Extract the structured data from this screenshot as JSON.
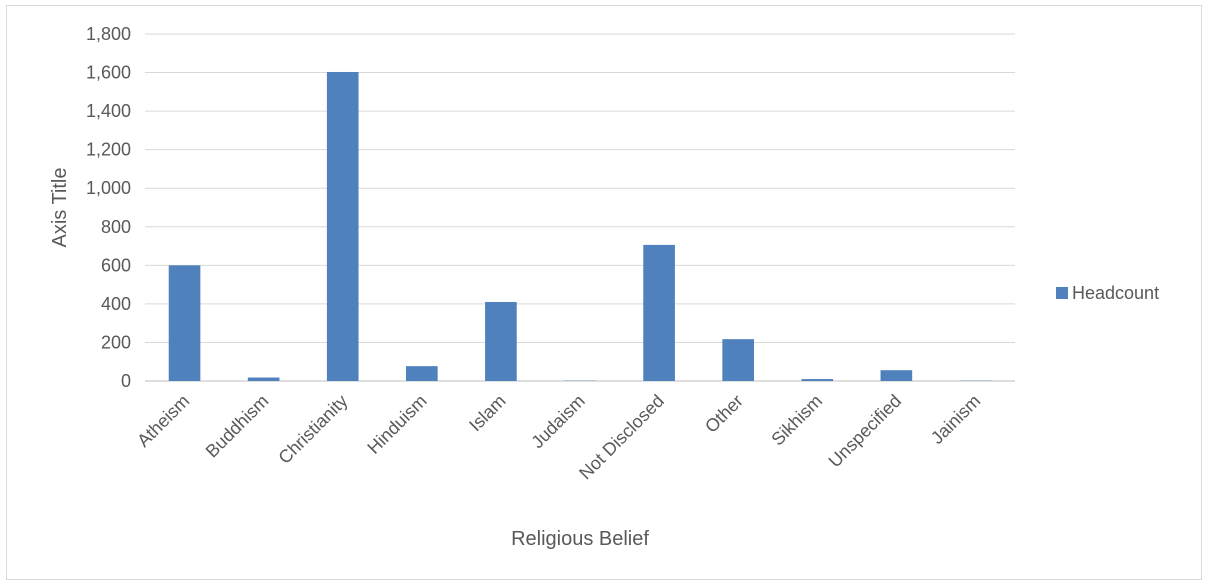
{
  "chart_data": {
    "type": "bar",
    "categories": [
      "Atheism",
      "Buddhism",
      "Christianity",
      "Hinduism",
      "Islam",
      "Judaism",
      "Not Disclosed",
      "Other",
      "Sikhism",
      "Unspecified",
      "Jainism"
    ],
    "series": [
      {
        "name": "Headcount",
        "values": [
          600,
          18,
          1603,
          77,
          410,
          2,
          706,
          217,
          10,
          56,
          2
        ],
        "color": "#4f81bd"
      }
    ],
    "xlabel": "Religious Belief",
    "ylabel": "Axis Title",
    "ylim": [
      0,
      1800
    ],
    "yticks": [
      "0",
      "200",
      "400",
      "600",
      "800",
      "1,000",
      "1,200",
      "1,400",
      "1,600",
      "1,800"
    ],
    "grid": true,
    "legend_position": "right"
  }
}
